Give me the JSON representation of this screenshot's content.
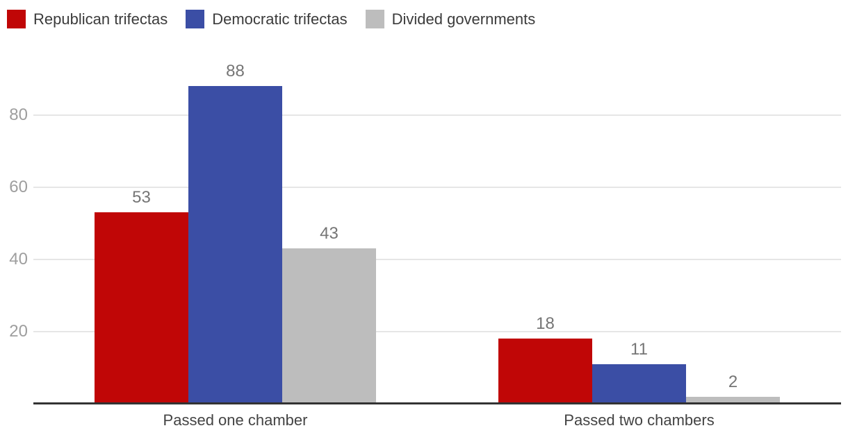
{
  "chart_data": {
    "type": "bar",
    "categories": [
      "Passed one chamber",
      "Passed two chambers"
    ],
    "series": [
      {
        "name": "Republican trifectas",
        "color": "#c00606",
        "values": [
          53,
          18
        ]
      },
      {
        "name": "Democratic trifectas",
        "color": "#3b4ea5",
        "values": [
          88,
          11
        ]
      },
      {
        "name": "Divided governments",
        "color": "#bdbdbd",
        "values": [
          43,
          2
        ]
      }
    ],
    "title": "",
    "xlabel": "",
    "ylabel": "",
    "ylim": [
      0,
      100
    ],
    "yticks": [
      20,
      40,
      60,
      80
    ],
    "grid": true,
    "legend_position": "top-left",
    "value_labels": true,
    "colors": {
      "gridline": "#e6e6e6",
      "axis_line": "#333333",
      "tick_label": "#9e9e9e",
      "value_label": "#757575",
      "category_label": "#434343",
      "legend_label": "#3b3b3b",
      "background": "#ffffff"
    }
  }
}
